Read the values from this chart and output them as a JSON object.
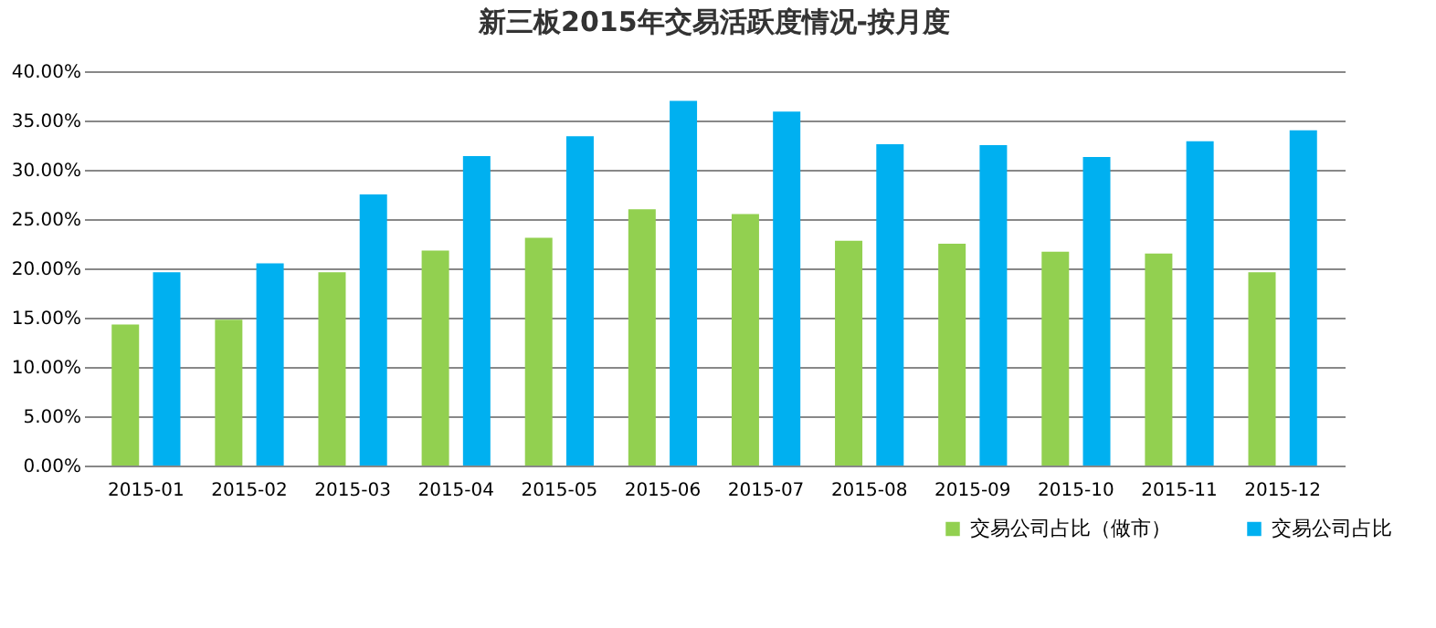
{
  "chart_data": {
    "type": "bar",
    "title": "新三板2015年交易活跃度情况-按月度",
    "categories": [
      "2015-01",
      "2015-02",
      "2015-03",
      "2015-04",
      "2015-05",
      "2015-06",
      "2015-07",
      "2015-08",
      "2015-09",
      "2015-10",
      "2015-11",
      "2015-12"
    ],
    "series": [
      {
        "name": "交易公司占比（做市）",
        "color": "#92d050",
        "values": [
          14.3,
          14.8,
          19.6,
          21.8,
          23.1,
          26.0,
          25.5,
          22.8,
          22.5,
          21.7,
          21.5,
          19.6
        ]
      },
      {
        "name": "交易公司占比",
        "color": "#00b0f0",
        "values": [
          19.6,
          20.5,
          27.5,
          31.4,
          33.4,
          37.0,
          35.9,
          32.6,
          32.5,
          31.3,
          32.9,
          34.0
        ]
      }
    ],
    "ylim": [
      0,
      40
    ],
    "yticks": [
      {
        "value": 0,
        "label": "0.00%"
      },
      {
        "value": 5,
        "label": "5.00%"
      },
      {
        "value": 10,
        "label": "10.00%"
      },
      {
        "value": 15,
        "label": "15.00%"
      },
      {
        "value": 20,
        "label": "20.00%"
      },
      {
        "value": 25,
        "label": "25.00%"
      },
      {
        "value": 30,
        "label": "30.00%"
      },
      {
        "value": 35,
        "label": "35.00%"
      },
      {
        "value": 40,
        "label": "40.00%"
      }
    ],
    "grid": "y",
    "legend": "bottom right"
  }
}
